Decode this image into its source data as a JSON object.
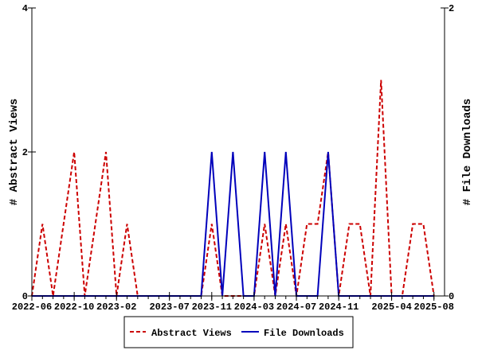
{
  "chart_data": {
    "type": "line",
    "xlabel": "",
    "ylabel": "# Abstract Views",
    "y2label": "# File Downloads",
    "ylim": [
      0,
      4
    ],
    "y2lim": [
      0,
      2
    ],
    "yticks": [
      "0",
      "2",
      "4"
    ],
    "y2ticks": [
      "0",
      "2"
    ],
    "months": [
      "2022-06",
      "2022-07",
      "2022-08",
      "2022-09",
      "2022-10",
      "2022-11",
      "2022-12",
      "2023-01",
      "2023-02",
      "2023-03",
      "2023-04",
      "2023-05",
      "2023-06",
      "2023-07",
      "2023-08",
      "2023-09",
      "2023-10",
      "2023-11",
      "2023-12",
      "2024-01",
      "2024-02",
      "2024-03",
      "2024-04",
      "2024-05",
      "2024-06",
      "2024-07",
      "2024-08",
      "2024-09",
      "2024-10",
      "2024-11",
      "2024-12",
      "2025-01",
      "2025-02",
      "2025-03",
      "2025-04",
      "2025-05",
      "2025-06",
      "2025-07",
      "2025-08"
    ],
    "xtick_labels": [
      {
        "label": "2022-06",
        "index": 0
      },
      {
        "label": "2022-10",
        "index": 4
      },
      {
        "label": "2023-02",
        "index": 8
      },
      {
        "label": "2023-07",
        "index": 13
      },
      {
        "label": "2023-11",
        "index": 17
      },
      {
        "label": "2024-03",
        "index": 21
      },
      {
        "label": "2024-07",
        "index": 25
      },
      {
        "label": "2024-11",
        "index": 29
      },
      {
        "label": "2025-04",
        "index": 34
      },
      {
        "label": "2025-08",
        "index": 38
      }
    ],
    "series": [
      {
        "name": "Abstract Views",
        "axis": "left",
        "color": "#cc0000",
        "dash": true,
        "values": [
          0,
          1,
          0,
          1,
          2,
          0,
          1,
          2,
          0,
          1,
          0,
          0,
          0,
          0,
          0,
          0,
          0,
          1,
          0,
          0,
          0,
          0,
          1,
          0,
          1,
          0,
          1,
          1,
          2,
          0,
          1,
          1,
          0,
          3,
          0,
          0,
          1,
          1,
          0
        ]
      },
      {
        "name": "File Downloads",
        "axis": "right",
        "color": "#0000bb",
        "dash": false,
        "values": [
          0,
          0,
          0,
          0,
          0,
          0,
          0,
          0,
          0,
          0,
          0,
          0,
          0,
          0,
          0,
          0,
          0,
          1,
          0,
          1,
          0,
          0,
          1,
          0,
          1,
          0,
          0,
          0,
          1,
          0,
          0,
          0,
          0,
          0,
          0,
          0,
          0,
          0,
          0
        ]
      }
    ],
    "legend": "bottom-center",
    "grid": false
  }
}
